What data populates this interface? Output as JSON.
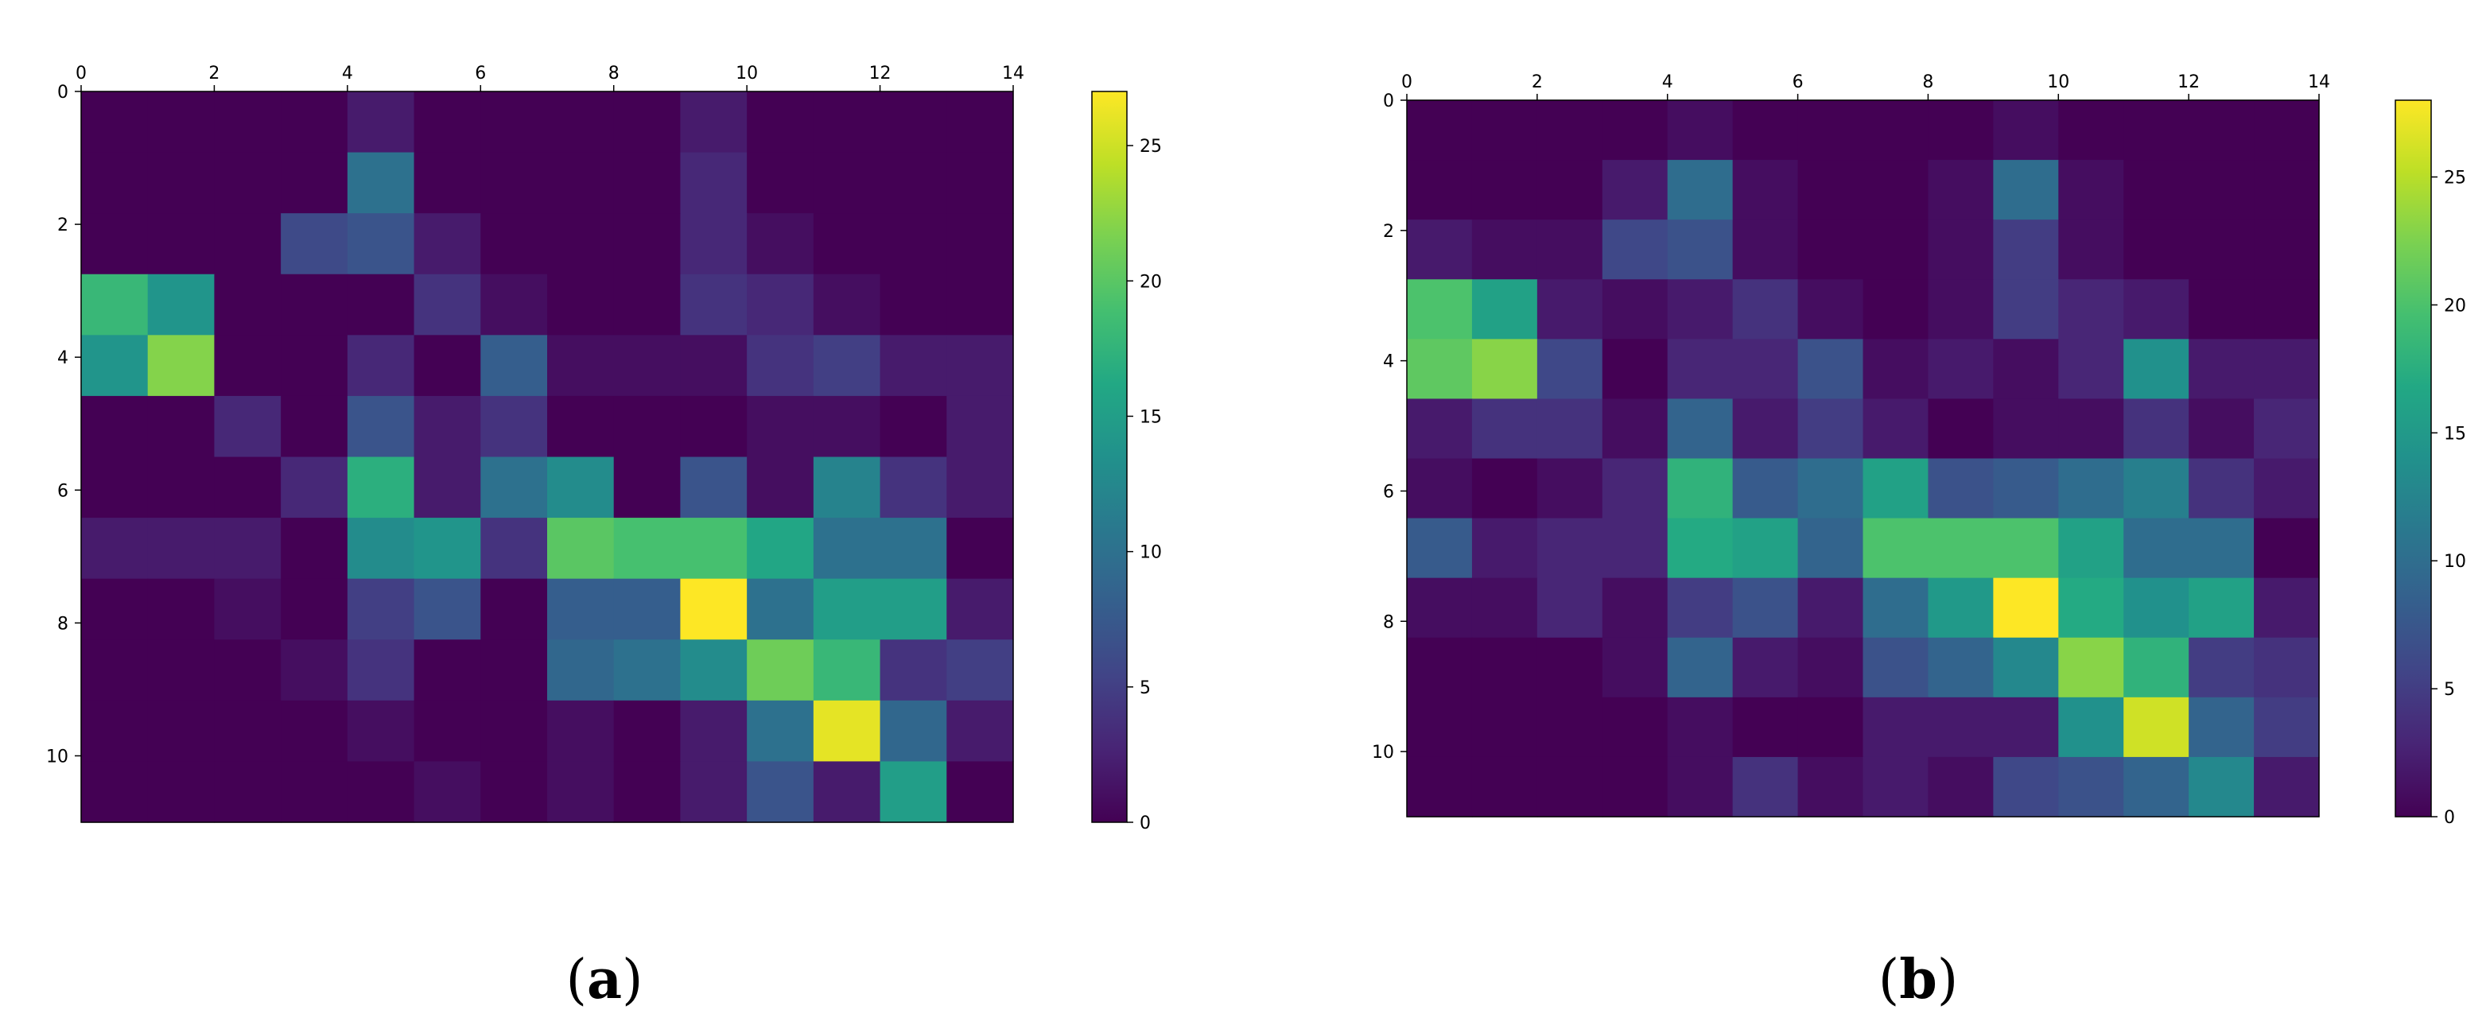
{
  "figure": {
    "panels": [
      {
        "label_open": "(",
        "label_letter": "a",
        "label_close": ")"
      },
      {
        "label_open": "(",
        "label_letter": "b",
        "label_close": ")"
      }
    ]
  },
  "chart_data": [
    {
      "type": "heatmap",
      "title": "",
      "xlabel": "",
      "ylabel": "",
      "colormap": "viridis",
      "x_ticks": [
        0,
        2,
        4,
        6,
        8,
        10,
        12,
        14
      ],
      "y_ticks": [
        0,
        2,
        4,
        6,
        8,
        10
      ],
      "xlim": [
        0,
        14
      ],
      "ylim": [
        0,
        11
      ],
      "colorbar": {
        "min": 0,
        "max": 27,
        "ticks": [
          0,
          5,
          10,
          15,
          20,
          25
        ],
        "position": "right"
      },
      "grid": false,
      "values": [
        [
          0,
          0,
          0,
          0,
          2,
          0,
          0,
          0,
          0,
          2,
          0,
          0,
          0,
          0
        ],
        [
          0,
          0,
          0,
          0,
          10,
          0,
          0,
          0,
          0,
          3,
          0,
          0,
          0,
          0
        ],
        [
          0,
          0,
          0,
          6,
          7,
          2,
          0,
          0,
          0,
          3,
          1,
          0,
          0,
          0
        ],
        [
          18,
          14,
          0,
          0,
          0,
          4,
          1,
          0,
          0,
          4,
          3,
          1,
          0,
          0
        ],
        [
          14,
          22,
          0,
          0,
          3,
          0,
          8,
          1,
          1,
          1,
          4,
          5,
          2,
          2
        ],
        [
          0,
          0,
          3,
          0,
          7,
          2,
          4,
          0,
          0,
          0,
          1,
          1,
          0,
          2
        ],
        [
          0,
          0,
          0,
          3,
          17,
          2,
          10,
          13,
          0,
          7,
          1,
          12,
          4,
          2
        ],
        [
          2,
          2,
          2,
          0,
          13,
          14,
          4,
          20,
          19,
          19,
          16,
          10,
          10,
          0
        ],
        [
          0,
          0,
          1,
          0,
          5,
          7,
          0,
          8,
          8,
          27,
          10,
          15,
          15,
          2
        ],
        [
          0,
          0,
          0,
          1,
          4,
          0,
          0,
          9,
          10,
          13,
          21,
          18,
          4,
          5
        ],
        [
          0,
          0,
          0,
          0,
          1,
          0,
          0,
          1,
          0,
          2,
          10,
          26,
          9,
          2
        ],
        [
          0,
          0,
          0,
          0,
          0,
          1,
          0,
          1,
          0,
          2,
          7,
          2,
          15,
          0
        ]
      ]
    },
    {
      "type": "heatmap",
      "title": "",
      "xlabel": "",
      "ylabel": "",
      "colormap": "viridis",
      "x_ticks": [
        0,
        2,
        4,
        6,
        8,
        10,
        12,
        14
      ],
      "y_ticks": [
        0,
        2,
        4,
        6,
        8,
        10
      ],
      "xlim": [
        0,
        14
      ],
      "ylim": [
        0,
        11
      ],
      "colorbar": {
        "min": 0,
        "max": 28,
        "ticks": [
          0,
          5,
          10,
          15,
          20,
          25
        ],
        "position": "right"
      },
      "grid": false,
      "values": [
        [
          0,
          0,
          0,
          0,
          1,
          0,
          0,
          0,
          0,
          1,
          0,
          0,
          0,
          0
        ],
        [
          0,
          0,
          0,
          2,
          10,
          1,
          0,
          0,
          1,
          10,
          1,
          0,
          0,
          0
        ],
        [
          2,
          1,
          1,
          6,
          7,
          1,
          0,
          0,
          1,
          5,
          1,
          0,
          0,
          0
        ],
        [
          20,
          16,
          2,
          1,
          2,
          4,
          1,
          0,
          1,
          5,
          3,
          2,
          0,
          0
        ],
        [
          21,
          23,
          6,
          0,
          3,
          3,
          7,
          1,
          2,
          1,
          3,
          14,
          2,
          2
        ],
        [
          2,
          4,
          4,
          1,
          9,
          2,
          5,
          2,
          0,
          1,
          1,
          4,
          1,
          3
        ],
        [
          1,
          0,
          1,
          3,
          18,
          8,
          10,
          16,
          7,
          8,
          10,
          12,
          4,
          2
        ],
        [
          8,
          2,
          3,
          3,
          17,
          16,
          9,
          20,
          20,
          20,
          16,
          10,
          10,
          0
        ],
        [
          1,
          1,
          3,
          1,
          5,
          7,
          2,
          10,
          15,
          28,
          17,
          14,
          16,
          2
        ],
        [
          0,
          0,
          0,
          1,
          9,
          2,
          1,
          7,
          9,
          13,
          23,
          18,
          5,
          4
        ],
        [
          0,
          0,
          0,
          0,
          1,
          0,
          0,
          2,
          2,
          2,
          14,
          26,
          9,
          5
        ],
        [
          0,
          0,
          0,
          0,
          1,
          4,
          1,
          2,
          1,
          6,
          7,
          9,
          13,
          2
        ]
      ]
    }
  ]
}
